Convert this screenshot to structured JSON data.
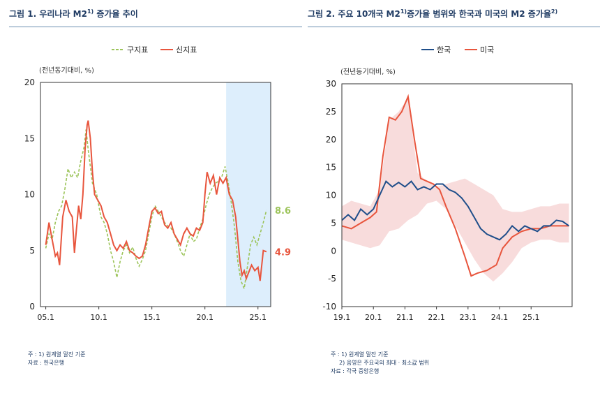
{
  "titles": {
    "left": "그림 1. 우리나라 M2",
    "left_sup": "1)",
    "left_tail": " 증가율 추이",
    "right": "그림 2. 주요 10개국 M2",
    "right_sup": "1)",
    "right_mid": "증가율 범위와 한국과 미국의 M2 증가율",
    "right_sup2": "2)"
  },
  "notes": {
    "left_1": "주 : 1) 원계열 말잔 기준",
    "left_2": "자료 : 한국은행",
    "right_1": "주 : 1) 원계열 말잔 기준",
    "right_2": "2) 음영은 주요국의 최대 · 최소값 범위",
    "right_3": "자료 : 각국 중앙은행"
  },
  "chart_data": [
    {
      "type": "line",
      "ylabel": "(전년동기대비, %)",
      "ylim": [
        0,
        20
      ],
      "yticks": [
        0,
        5,
        10,
        15,
        20
      ],
      "xlim": [
        2004.5,
        2026.2
      ],
      "xtick_labels": [
        "05.1",
        "10.1",
        "15.1",
        "20.1",
        "25.1"
      ],
      "xtick_values": [
        2005,
        2010,
        2015,
        2020,
        2025
      ],
      "legend_position": "top-center",
      "shaded_period": [
        2022.0,
        2026.2
      ],
      "colors": {
        "old": "#9cc45a",
        "new": "#e8553d",
        "shade": "#ddeefc"
      },
      "series": [
        {
          "name": "구지표",
          "end_label": "8.6",
          "points": [
            [
              2005.0,
              5.2
            ],
            [
              2005.3,
              6.5
            ],
            [
              2005.6,
              6.0
            ],
            [
              2005.9,
              7.5
            ],
            [
              2006.2,
              8.5
            ],
            [
              2006.5,
              9.0
            ],
            [
              2006.8,
              10.5
            ],
            [
              2007.1,
              12.3
            ],
            [
              2007.4,
              11.5
            ],
            [
              2007.7,
              12.0
            ],
            [
              2008.0,
              11.5
            ],
            [
              2008.3,
              13.0
            ],
            [
              2008.6,
              14.2
            ],
            [
              2008.8,
              15.8
            ],
            [
              2009.0,
              14.0
            ],
            [
              2009.2,
              12.5
            ],
            [
              2009.4,
              11.0
            ],
            [
              2009.6,
              10.5
            ],
            [
              2009.8,
              10.0
            ],
            [
              2010.0,
              9.0
            ],
            [
              2010.2,
              8.0
            ],
            [
              2010.5,
              7.5
            ],
            [
              2010.8,
              6.5
            ],
            [
              2011.1,
              5.0
            ],
            [
              2011.4,
              4.0
            ],
            [
              2011.7,
              2.6
            ],
            [
              2012.0,
              4.0
            ],
            [
              2012.3,
              5.0
            ],
            [
              2012.6,
              5.5
            ],
            [
              2012.9,
              4.8
            ],
            [
              2013.2,
              5.3
            ],
            [
              2013.5,
              4.3
            ],
            [
              2013.8,
              3.6
            ],
            [
              2014.1,
              4.2
            ],
            [
              2014.4,
              5.0
            ],
            [
              2014.7,
              6.5
            ],
            [
              2015.0,
              8.0
            ],
            [
              2015.3,
              9.0
            ],
            [
              2015.6,
              8.5
            ],
            [
              2015.9,
              8.0
            ],
            [
              2016.2,
              7.5
            ],
            [
              2016.5,
              7.2
            ],
            [
              2016.8,
              7.0
            ],
            [
              2017.1,
              6.5
            ],
            [
              2017.4,
              5.8
            ],
            [
              2017.7,
              5.0
            ],
            [
              2018.0,
              4.5
            ],
            [
              2018.3,
              5.5
            ],
            [
              2018.6,
              6.5
            ],
            [
              2018.9,
              5.8
            ],
            [
              2019.2,
              6.0
            ],
            [
              2019.5,
              7.0
            ],
            [
              2019.8,
              7.8
            ],
            [
              2020.1,
              9.0
            ],
            [
              2020.4,
              10.0
            ],
            [
              2020.7,
              10.6
            ],
            [
              2021.0,
              11.0
            ],
            [
              2021.3,
              11.2
            ],
            [
              2021.6,
              11.6
            ],
            [
              2021.9,
              12.5
            ],
            [
              2022.2,
              11.0
            ],
            [
              2022.5,
              9.2
            ],
            [
              2022.8,
              7.0
            ],
            [
              2023.1,
              4.0
            ],
            [
              2023.4,
              2.3
            ],
            [
              2023.7,
              1.6
            ],
            [
              2024.0,
              3.5
            ],
            [
              2024.3,
              5.5
            ],
            [
              2024.6,
              6.2
            ],
            [
              2024.9,
              5.5
            ],
            [
              2025.2,
              6.5
            ],
            [
              2025.5,
              7.5
            ],
            [
              2025.8,
              8.6
            ]
          ]
        },
        {
          "name": "신지표",
          "end_label": "4.9",
          "points": [
            [
              2005.0,
              5.5
            ],
            [
              2005.3,
              7.5
            ],
            [
              2005.6,
              6.0
            ],
            [
              2005.9,
              4.5
            ],
            [
              2006.1,
              4.8
            ],
            [
              2006.3,
              3.7
            ],
            [
              2006.6,
              8.0
            ],
            [
              2006.9,
              9.5
            ],
            [
              2007.2,
              8.5
            ],
            [
              2007.5,
              8.0
            ],
            [
              2007.7,
              4.8
            ],
            [
              2007.9,
              7.0
            ],
            [
              2008.1,
              9.0
            ],
            [
              2008.3,
              7.8
            ],
            [
              2008.5,
              10.0
            ],
            [
              2008.7,
              14.0
            ],
            [
              2008.9,
              16.2
            ],
            [
              2009.0,
              16.6
            ],
            [
              2009.2,
              15.0
            ],
            [
              2009.4,
              12.0
            ],
            [
              2009.6,
              10.0
            ],
            [
              2009.9,
              9.5
            ],
            [
              2010.2,
              9.0
            ],
            [
              2010.5,
              8.0
            ],
            [
              2010.8,
              7.5
            ],
            [
              2011.1,
              6.5
            ],
            [
              2011.4,
              5.5
            ],
            [
              2011.7,
              5.0
            ],
            [
              2012.0,
              5.5
            ],
            [
              2012.3,
              5.2
            ],
            [
              2012.6,
              5.8
            ],
            [
              2012.9,
              5.0
            ],
            [
              2013.2,
              4.8
            ],
            [
              2013.5,
              4.5
            ],
            [
              2013.8,
              4.3
            ],
            [
              2014.1,
              4.5
            ],
            [
              2014.4,
              5.5
            ],
            [
              2014.7,
              7.0
            ],
            [
              2015.0,
              8.5
            ],
            [
              2015.3,
              8.8
            ],
            [
              2015.6,
              8.3
            ],
            [
              2015.9,
              8.5
            ],
            [
              2016.2,
              7.3
            ],
            [
              2016.5,
              7.0
            ],
            [
              2016.8,
              7.5
            ],
            [
              2017.1,
              6.5
            ],
            [
              2017.4,
              6.0
            ],
            [
              2017.7,
              5.5
            ],
            [
              2018.0,
              6.5
            ],
            [
              2018.3,
              7.0
            ],
            [
              2018.6,
              6.5
            ],
            [
              2018.9,
              6.3
            ],
            [
              2019.2,
              7.0
            ],
            [
              2019.5,
              6.8
            ],
            [
              2019.8,
              7.5
            ],
            [
              2020.0,
              10.0
            ],
            [
              2020.2,
              12.0
            ],
            [
              2020.5,
              11.0
            ],
            [
              2020.8,
              11.7
            ],
            [
              2021.1,
              10.0
            ],
            [
              2021.4,
              11.5
            ],
            [
              2021.7,
              11.0
            ],
            [
              2022.0,
              11.5
            ],
            [
              2022.3,
              10.0
            ],
            [
              2022.6,
              9.5
            ],
            [
              2022.9,
              8.0
            ],
            [
              2023.1,
              6.0
            ],
            [
              2023.3,
              4.0
            ],
            [
              2023.5,
              2.8
            ],
            [
              2023.7,
              3.2
            ],
            [
              2023.9,
              2.5
            ],
            [
              2024.1,
              3.0
            ],
            [
              2024.4,
              3.7
            ],
            [
              2024.7,
              3.2
            ],
            [
              2025.0,
              3.5
            ],
            [
              2025.2,
              2.3
            ],
            [
              2025.5,
              5.0
            ],
            [
              2025.8,
              4.9
            ]
          ]
        }
      ]
    },
    {
      "type": "line",
      "ylabel": "(전년동기대비, %)",
      "ylim": [
        -10,
        30
      ],
      "yticks": [
        -10,
        -5,
        0,
        5,
        10,
        15,
        20,
        25,
        30
      ],
      "xlim": [
        2019.0,
        2026.3
      ],
      "xtick_labels": [
        "19.1",
        "20.1",
        "21.1",
        "22.1",
        "23.1",
        "24.1",
        "25.1"
      ],
      "xtick_values": [
        2019,
        2020,
        2021,
        2022,
        2023,
        2024,
        2025
      ],
      "legend_position": "top-center",
      "colors": {
        "korea": "#1f4e8a",
        "usa": "#e8553d",
        "band": "#f8dcdc"
      },
      "band": {
        "x": [
          2019.0,
          2019.3,
          2019.6,
          2019.9,
          2020.2,
          2020.5,
          2020.8,
          2021.1,
          2021.4,
          2021.7,
          2022.0,
          2022.3,
          2022.6,
          2022.9,
          2023.2,
          2023.5,
          2023.8,
          2024.1,
          2024.4,
          2024.7,
          2025.0,
          2025.3,
          2025.6,
          2025.9,
          2026.2
        ],
        "upper": [
          8.0,
          9.0,
          8.5,
          8.0,
          11.0,
          23.5,
          25.0,
          27.5,
          14.0,
          12.5,
          11.5,
          12.0,
          12.5,
          13.0,
          12.0,
          11.0,
          10.0,
          7.5,
          7.0,
          7.0,
          7.5,
          8.0,
          8.0,
          8.5,
          8.5
        ],
        "lower": [
          2.0,
          1.5,
          1.0,
          0.5,
          1.0,
          3.5,
          4.0,
          5.5,
          6.5,
          8.5,
          9.0,
          7.5,
          4.5,
          1.5,
          -1.5,
          -4.0,
          -5.5,
          -4.0,
          -2.0,
          0.5,
          1.5,
          2.0,
          2.0,
          1.5,
          1.5
        ]
      },
      "series": [
        {
          "name": "한국",
          "points": [
            [
              2019.0,
              5.5
            ],
            [
              2019.2,
              6.5
            ],
            [
              2019.4,
              5.5
            ],
            [
              2019.6,
              7.5
            ],
            [
              2019.8,
              6.5
            ],
            [
              2020.0,
              7.5
            ],
            [
              2020.2,
              10.0
            ],
            [
              2020.4,
              12.5
            ],
            [
              2020.6,
              11.5
            ],
            [
              2020.8,
              12.3
            ],
            [
              2021.0,
              11.5
            ],
            [
              2021.2,
              12.5
            ],
            [
              2021.4,
              11.0
            ],
            [
              2021.6,
              11.5
            ],
            [
              2021.8,
              11.0
            ],
            [
              2022.0,
              12.0
            ],
            [
              2022.2,
              12.0
            ],
            [
              2022.4,
              11.0
            ],
            [
              2022.6,
              10.5
            ],
            [
              2022.8,
              9.5
            ],
            [
              2023.0,
              8.0
            ],
            [
              2023.2,
              6.0
            ],
            [
              2023.4,
              4.0
            ],
            [
              2023.6,
              3.0
            ],
            [
              2023.8,
              2.5
            ],
            [
              2024.0,
              2.0
            ],
            [
              2024.2,
              3.0
            ],
            [
              2024.4,
              4.5
            ],
            [
              2024.6,
              3.5
            ],
            [
              2024.8,
              4.5
            ],
            [
              2025.0,
              4.0
            ],
            [
              2025.2,
              3.5
            ],
            [
              2025.4,
              4.5
            ],
            [
              2025.6,
              4.5
            ],
            [
              2025.8,
              5.5
            ],
            [
              2026.0,
              5.3
            ],
            [
              2026.2,
              4.5
            ]
          ]
        },
        {
          "name": "미국",
          "points": [
            [
              2019.0,
              4.5
            ],
            [
              2019.3,
              4.0
            ],
            [
              2019.6,
              5.0
            ],
            [
              2019.9,
              6.0
            ],
            [
              2020.1,
              7.0
            ],
            [
              2020.3,
              17.0
            ],
            [
              2020.5,
              24.0
            ],
            [
              2020.7,
              23.5
            ],
            [
              2020.9,
              25.0
            ],
            [
              2021.1,
              27.7
            ],
            [
              2021.3,
              20.0
            ],
            [
              2021.5,
              13.0
            ],
            [
              2021.7,
              12.5
            ],
            [
              2021.9,
              12.0
            ],
            [
              2022.1,
              11.0
            ],
            [
              2022.3,
              8.0
            ],
            [
              2022.6,
              4.0
            ],
            [
              2022.9,
              -1.0
            ],
            [
              2023.1,
              -4.5
            ],
            [
              2023.3,
              -4.0
            ],
            [
              2023.6,
              -3.5
            ],
            [
              2023.9,
              -2.5
            ],
            [
              2024.1,
              0.5
            ],
            [
              2024.4,
              2.5
            ],
            [
              2024.7,
              3.5
            ],
            [
              2025.0,
              4.0
            ],
            [
              2025.3,
              4.0
            ],
            [
              2025.6,
              4.5
            ],
            [
              2025.9,
              4.5
            ],
            [
              2026.2,
              4.5
            ]
          ]
        }
      ]
    }
  ]
}
